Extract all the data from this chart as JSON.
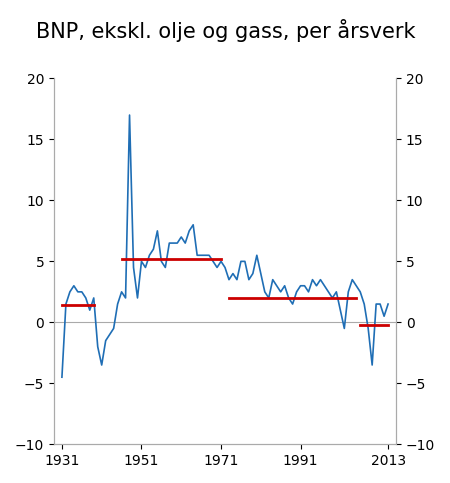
{
  "title": "BNP, ekskl. olje og gass, per årsverk",
  "years": [
    1931,
    1932,
    1933,
    1934,
    1935,
    1936,
    1937,
    1938,
    1939,
    1940,
    1941,
    1942,
    1943,
    1944,
    1945,
    1946,
    1947,
    1948,
    1949,
    1950,
    1951,
    1952,
    1953,
    1954,
    1955,
    1956,
    1957,
    1958,
    1959,
    1960,
    1961,
    1962,
    1963,
    1964,
    1965,
    1966,
    1967,
    1968,
    1969,
    1970,
    1971,
    1972,
    1973,
    1974,
    1975,
    1976,
    1977,
    1978,
    1979,
    1980,
    1981,
    1982,
    1983,
    1984,
    1985,
    1986,
    1987,
    1988,
    1989,
    1990,
    1991,
    1992,
    1993,
    1994,
    1995,
    1996,
    1997,
    1998,
    1999,
    2000,
    2001,
    2002,
    2003,
    2004,
    2005,
    2006,
    2007,
    2008,
    2009,
    2010,
    2011,
    2012,
    2013
  ],
  "values": [
    -4.5,
    1.5,
    2.5,
    3.0,
    2.5,
    2.5,
    2.0,
    1.0,
    2.0,
    -2.0,
    -3.5,
    -1.5,
    -1.0,
    -0.5,
    1.5,
    2.5,
    2.0,
    17.0,
    4.5,
    2.0,
    5.0,
    4.5,
    5.5,
    6.0,
    7.5,
    5.0,
    4.5,
    6.5,
    6.5,
    6.5,
    7.0,
    6.5,
    7.5,
    8.0,
    5.5,
    5.5,
    5.5,
    5.5,
    5.0,
    4.5,
    5.0,
    4.5,
    3.5,
    4.0,
    3.5,
    5.0,
    5.0,
    3.5,
    4.0,
    5.5,
    4.0,
    2.5,
    2.0,
    3.5,
    3.0,
    2.5,
    3.0,
    2.0,
    1.5,
    2.5,
    3.0,
    3.0,
    2.5,
    3.5,
    3.0,
    3.5,
    3.0,
    2.5,
    2.0,
    2.5,
    1.0,
    -0.5,
    2.5,
    3.5,
    3.0,
    2.5,
    1.5,
    -0.5,
    -3.5,
    1.5,
    1.5,
    0.5,
    1.5
  ],
  "line_color": "#1f6eb5",
  "red_lines": [
    {
      "x_start": 1931,
      "x_end": 1939,
      "y": 1.4
    },
    {
      "x_start": 1946,
      "x_end": 1971,
      "y": 5.2
    },
    {
      "x_start": 1973,
      "x_end": 2005,
      "y": 2.0
    },
    {
      "x_start": 2006,
      "x_end": 2013,
      "y": -0.2
    }
  ],
  "red_color": "#cc0000",
  "xlim": [
    1929,
    2015
  ],
  "ylim": [
    -10,
    20
  ],
  "yticks": [
    -10,
    -5,
    0,
    5,
    10,
    15,
    20
  ],
  "xticks": [
    1931,
    1951,
    1971,
    1991,
    2013
  ],
  "background_color": "#ffffff",
  "title_fontsize": 15,
  "axis_fontsize": 10
}
